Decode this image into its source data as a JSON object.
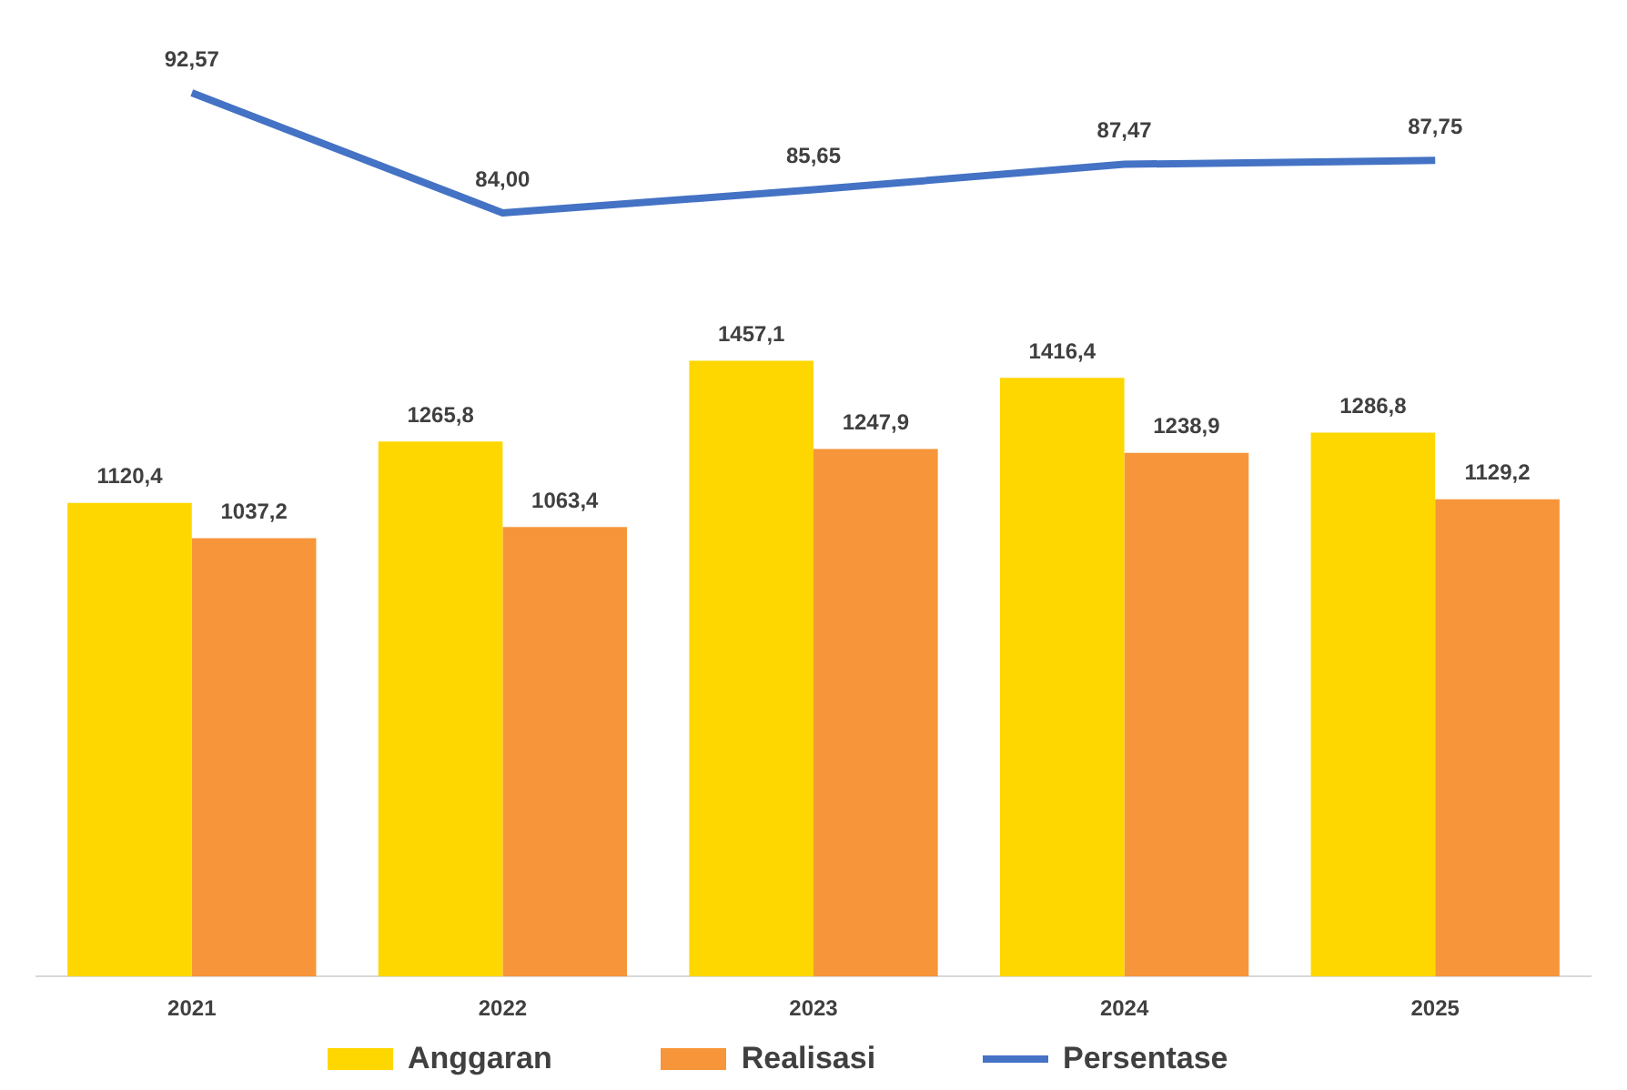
{
  "chart_data": [
    {
      "type": "line",
      "categories": [
        "2021",
        "2022",
        "2023",
        "2024",
        "2025"
      ],
      "tick_labels": false,
      "legend": "bottom right",
      "marker": "none",
      "series": [
        {
          "name": "Persentase",
          "color": "#4472c4",
          "values": [
            92.57,
            84.0,
            85.65,
            87.47,
            87.75
          ],
          "value_labels": [
            "92,57",
            "84,00",
            "85,65",
            "87,47",
            "87,75"
          ]
        }
      ]
    },
    {
      "type": "bar",
      "categories": [
        "2021",
        "2022",
        "2023",
        "2024",
        "2025"
      ],
      "tick_labels": "x",
      "legend": "bottom left",
      "series": [
        {
          "name": "Anggaran",
          "color": "#ffd700",
          "values": [
            1120.4,
            1265.8,
            1457.1,
            1416.4,
            1286.8
          ],
          "value_labels": [
            "1120,4",
            "1265,8",
            "1457,1",
            "1416,4",
            "1286,8"
          ]
        },
        {
          "name": "Realisasi",
          "color": "#f7953a",
          "values": [
            1037.2,
            1063.4,
            1247.9,
            1238.9,
            1129.2
          ],
          "value_labels": [
            "1037,2",
            "1063,4",
            "1247,9",
            "1238,9",
            "1129,2"
          ]
        }
      ]
    }
  ]
}
